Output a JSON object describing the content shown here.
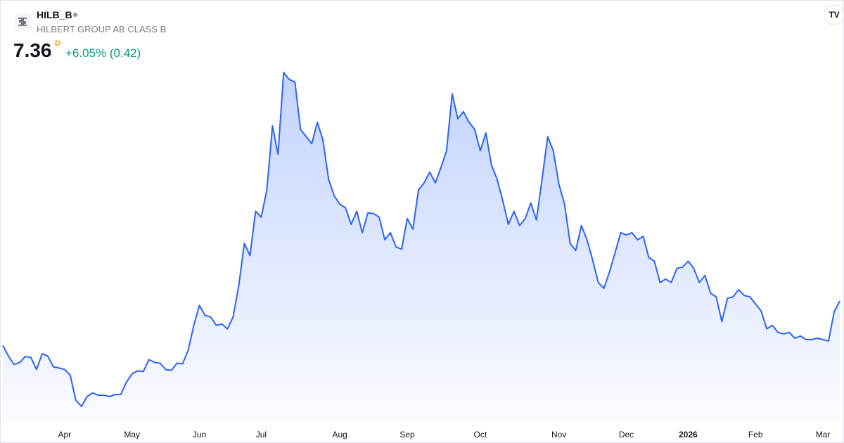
{
  "header": {
    "symbol": "HILB_B",
    "name": "HILBERT GROUP AB CLASS B",
    "price": "7.36",
    "interval": "D",
    "change": "+6.05% (0.42)"
  },
  "chart_data": {
    "type": "area",
    "color": "#2962ff",
    "categories": [
      null,
      null,
      null,
      null,
      null,
      null,
      null,
      null,
      null,
      null,
      null,
      "Apr",
      null,
      null,
      null,
      null,
      null,
      null,
      null,
      null,
      null,
      null,
      null,
      "May",
      null,
      null,
      null,
      null,
      null,
      null,
      null,
      null,
      null,
      null,
      null,
      "Jun",
      null,
      null,
      null,
      null,
      null,
      null,
      null,
      null,
      null,
      null,
      "Jul",
      null,
      null,
      null,
      null,
      null,
      null,
      null,
      null,
      null,
      null,
      null,
      null,
      null,
      "Aug",
      null,
      null,
      null,
      null,
      null,
      null,
      null,
      null,
      null,
      null,
      null,
      "Sep",
      null,
      null,
      null,
      null,
      null,
      null,
      null,
      null,
      null,
      null,
      null,
      null,
      "Oct",
      null,
      null,
      null,
      null,
      null,
      null,
      null,
      null,
      null,
      null,
      null,
      null,
      null,
      "Nov",
      null,
      null,
      null,
      null,
      null,
      null,
      null,
      null,
      null,
      null,
      null,
      "Dec",
      null,
      null,
      null,
      null,
      null,
      null,
      null,
      null,
      null,
      null,
      "2026",
      null,
      null,
      null,
      null,
      null,
      null,
      null,
      null,
      null,
      null,
      null,
      "Feb",
      null,
      null,
      null,
      null,
      null,
      null,
      null,
      null,
      null,
      null,
      null,
      "Mar",
      null,
      null,
      null
    ],
    "values": [
      5.62,
      5.2,
      4.87,
      4.95,
      5.18,
      5.15,
      4.67,
      5.29,
      5.2,
      4.78,
      4.73,
      4.67,
      4.45,
      3.47,
      3.22,
      3.61,
      3.75,
      3.66,
      3.66,
      3.61,
      3.69,
      3.69,
      4.17,
      4.5,
      4.62,
      4.59,
      5.06,
      4.95,
      4.92,
      4.67,
      4.64,
      4.92,
      4.9,
      5.43,
      6.41,
      7.19,
      6.8,
      6.74,
      6.41,
      6.46,
      6.27,
      6.74,
      7.95,
      9.63,
      9.15,
      10.89,
      10.66,
      11.73,
      14.25,
      13.13,
      16.35,
      16.07,
      15.98,
      14.11,
      13.83,
      13.55,
      14.39,
      13.69,
      12.15,
      11.5,
      11.17,
      11.03,
      10.38,
      10.89,
      10.05,
      10.83,
      10.8,
      10.66,
      9.77,
      10.05,
      9.49,
      9.4,
      10.61,
      10.19,
      11.73,
      12.01,
      12.43,
      12.01,
      12.62,
      13.27,
      15.51,
      14.53,
      14.81,
      14.39,
      14.11,
      13.27,
      13.97,
      12.71,
      12.15,
      11.31,
      10.38,
      10.89,
      10.33,
      10.61,
      11.22,
      10.55,
      12.15,
      13.83,
      13.27,
      11.95,
      11.17,
      9.63,
      9.35,
      10.33,
      9.77,
      8.98,
      8.09,
      7.86,
      8.51,
      9.26,
      10.05,
      9.96,
      10.05,
      9.77,
      9.91,
      9.07,
      8.93,
      8.09,
      8.23,
      8.09,
      8.65,
      8.7,
      8.93,
      8.65,
      8.09,
      8.37,
      7.67,
      7.53,
      6.55,
      7.47,
      7.53,
      7.81,
      7.58,
      7.53,
      7.25,
      6.97,
      6.27,
      6.41,
      6.13,
      6.07,
      6.13,
      5.9,
      5.99,
      5.85,
      5.85,
      5.9,
      5.85,
      5.79,
      6.94,
      7.36
    ]
  }
}
